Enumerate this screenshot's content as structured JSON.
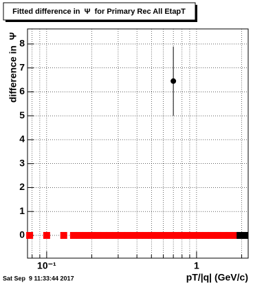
{
  "chart_data": {
    "type": "scatter",
    "title": "Fitted difference in  Ψ  for Primary Rec All EtapT",
    "x_label": "pT/|q| (GeV/c)",
    "y_label": "difference in  Ψ",
    "timestamp": "Sat Sep  9 11:33:44 2017",
    "x_log": true,
    "grid": true,
    "xlim": [
      0.0745,
      2.21
    ],
    "ylim": [
      -0.95,
      8.63
    ],
    "xticks": [
      {
        "value": 0.1,
        "label": "10⁻¹"
      },
      1
    ],
    "xminor_ticks": [
      0.08,
      0.09,
      0.2,
      0.3,
      0.4,
      0.5,
      0.6,
      0.7,
      0.8,
      0.9,
      2
    ],
    "yticks": [
      0,
      1,
      2,
      3,
      4,
      5,
      6,
      7,
      8
    ],
    "series": [
      {
        "color": "#ff0000",
        "marker": "square",
        "x": [
          0.077,
          0.1,
          0.13,
          0.151,
          0.166,
          0.182,
          0.2,
          0.219,
          0.24,
          0.263,
          0.288,
          0.316,
          0.347,
          0.38,
          0.417,
          0.457,
          0.501,
          0.55,
          0.603,
          0.661,
          0.724,
          0.794,
          0.871,
          0.955,
          1.047,
          1.148,
          1.259,
          1.38,
          1.514,
          1.66,
          1.82
        ],
        "values": [
          0,
          0,
          0,
          0,
          0,
          0,
          0,
          0,
          0,
          0,
          0,
          0,
          0,
          0,
          0,
          0,
          0,
          0,
          0,
          0,
          0,
          0,
          0,
          0,
          0,
          0,
          0,
          0,
          0,
          0,
          0
        ]
      },
      {
        "color": "#000000",
        "marker": "circle",
        "x": [
          0.7
        ],
        "values": [
          6.45
        ],
        "errors": [
          1.44
        ]
      },
      {
        "color": "#000000",
        "marker": "square",
        "x": [
          1.95,
          2.1
        ],
        "values": [
          0,
          0
        ]
      }
    ]
  }
}
